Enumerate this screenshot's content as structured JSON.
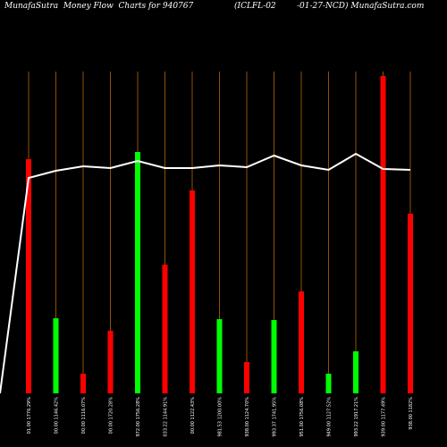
{
  "header": {
    "left": "MunafaSutra  Money Flow  Charts for 940767",
    "middle": "(ICLFL-02",
    "right": "-01-27-NCD) MunafaSutra.com"
  },
  "chart_data": {
    "type": "bar",
    "title": "MunafaSutra  Money Flow  Charts for 940767 (ICLFL-02-01-27-NCD) MunafaSutra.com",
    "categories": [
      "01.00 1776.29%",
      "00.00 1146.42%",
      "00.00 1116.07%",
      "00.00 1720.28%",
      "972.00 1756.28%",
      "033.22 1144.91%",
      "00.00 1122.43%",
      "981.53 1200.00%",
      "938.00 1124.70%",
      "993.37 1741.95%",
      "951.00 1756.08%",
      "949.00 1127.52%",
      "993.22 1917.21%",
      "939.00 1177.49%",
      "938.00 1182%"
    ],
    "series": [
      {
        "values": [
          262,
          84,
          22,
          70,
          270,
          144,
          227,
          83,
          35,
          82,
          114,
          22,
          47,
          355,
          201
        ],
        "colors": [
          "red",
          "green",
          "red",
          "red",
          "green",
          "red",
          "red",
          "green",
          "red",
          "green",
          "red",
          "green",
          "green",
          "red",
          "red"
        ]
      },
      {
        "type": "line",
        "start": 0,
        "values": [
          241,
          249,
          254,
          252,
          260,
          252,
          252,
          255,
          253,
          266,
          255,
          250,
          268,
          251,
          250
        ]
      }
    ],
    "ylim": [
      0,
      360
    ],
    "colors": {
      "red": "#ff0000",
      "green": "#00ff00",
      "gridline": "#b8640a",
      "line": "#ffffff",
      "background": "#000000"
    },
    "grid": true
  }
}
